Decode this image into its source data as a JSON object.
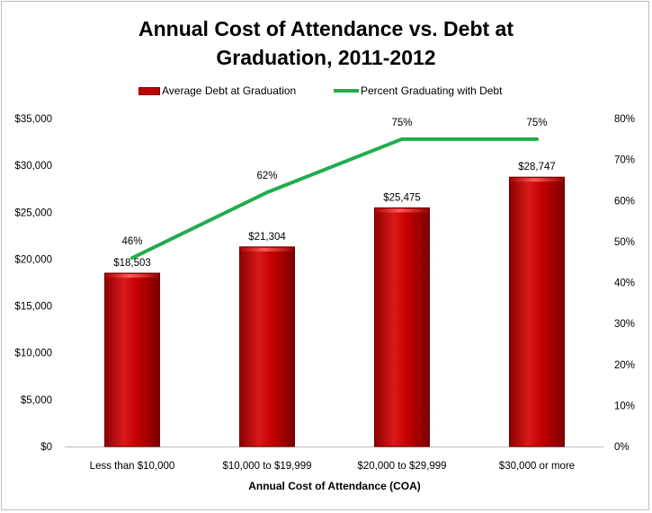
{
  "chart_data": {
    "type": "bar",
    "title": "Annual Cost of Attendance vs. Debt at Graduation, 2011-2012",
    "title_lines": [
      "Annual Cost of Attendance vs. Debt at",
      "Graduation, 2011-2012"
    ],
    "xlabel": "Annual Cost of Attendance (COA)",
    "categories": [
      "Less than $10,000",
      "$10,000 to $19,999",
      "$20,000 to $29,999",
      "$30,000 or more"
    ],
    "series": [
      {
        "name": "Average Debt at Graduation",
        "type": "bar",
        "axis": "left",
        "values": [
          18503,
          21304,
          25475,
          28747
        ],
        "labels": [
          "$18,503",
          "$21,304",
          "$25,475",
          "$28,747"
        ],
        "color": "#c00000"
      },
      {
        "name": "Percent Graduating with Debt",
        "type": "line",
        "axis": "right",
        "values": [
          46,
          62,
          75,
          75
        ],
        "labels": [
          "46%",
          "62%",
          "75%",
          "75%"
        ],
        "color": "#1fad4d"
      }
    ],
    "y_left": {
      "min": 0,
      "max": 35000,
      "step": 5000,
      "tick_labels": [
        "$0",
        "$5,000",
        "$10,000",
        "$15,000",
        "$20,000",
        "$25,000",
        "$30,000",
        "$35,000"
      ]
    },
    "y_right": {
      "min": 0,
      "max": 80,
      "step": 10,
      "tick_labels": [
        "0%",
        "10%",
        "20%",
        "30%",
        "40%",
        "50%",
        "60%",
        "70%",
        "80%"
      ]
    },
    "grid": false,
    "legend_position": "top"
  }
}
